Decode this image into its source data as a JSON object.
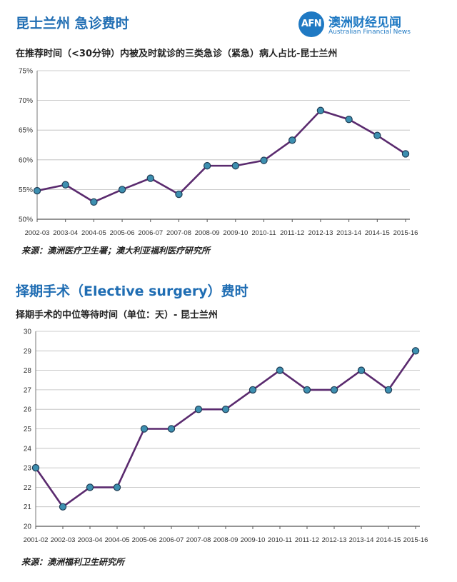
{
  "header": {
    "title1": "昆士兰州  急诊费时",
    "logo_mark": "AFN",
    "logo_cn": "澳洲财经见闻",
    "logo_en": "Australian Financial News",
    "brand_color": "#1f79c3"
  },
  "chart1": {
    "subtitle": "在推荐时间（<30分钟）内被及时就诊的三类急诊（紧急）病人占比-昆士兰州",
    "source": "来源：澳洲医疗卫生署；澳大利亚福利医疗研究所"
  },
  "chart2": {
    "title": "择期手术（Elective surgery）费时",
    "subtitle": "择期手术的中位等待时间（单位：天）- 昆士兰州",
    "source": "来源：澳洲福利卫生研究所"
  },
  "chart_data": [
    {
      "type": "line",
      "title": "",
      "categories": [
        "2002-03",
        "2003-04",
        "2004-05",
        "2005-06",
        "2006-07",
        "2007-08",
        "2008-09",
        "2009-10",
        "2010-11",
        "2011-12",
        "2012-13",
        "2013-14",
        "2014-15",
        "2015-16"
      ],
      "series": [
        {
          "values": [
            54.8,
            55.8,
            52.9,
            55.0,
            56.9,
            54.2,
            59.0,
            59.0,
            59.9,
            63.3,
            68.3,
            66.8,
            64.1,
            61.0
          ]
        }
      ],
      "y_ticks": [
        "75%",
        "70%",
        "65%",
        "60%",
        "55%",
        "50%"
      ],
      "ylim": [
        50,
        75
      ],
      "grid": true,
      "line_color": "#5a2a6e",
      "marker_color": "#3d8fb0"
    },
    {
      "type": "line",
      "title": "",
      "categories": [
        "2001-02",
        "2002-03",
        "2003-04",
        "2004-05",
        "2005-06",
        "2006-07",
        "2007-08",
        "2008-09",
        "2009-10",
        "2010-11",
        "2011-12",
        "2012-13",
        "2013-14",
        "2014-15",
        "2015-16"
      ],
      "series": [
        {
          "values": [
            23,
            21,
            22,
            22,
            25,
            25,
            26,
            26,
            27,
            28,
            27,
            27,
            28,
            27,
            29
          ]
        }
      ],
      "y_ticks": [
        "30",
        "29",
        "28",
        "27",
        "26",
        "25",
        "24",
        "23",
        "22",
        "21",
        "20"
      ],
      "ylim": [
        20,
        30
      ],
      "grid": true,
      "line_color": "#5a2a6e",
      "marker_color": "#3d8fb0"
    }
  ]
}
